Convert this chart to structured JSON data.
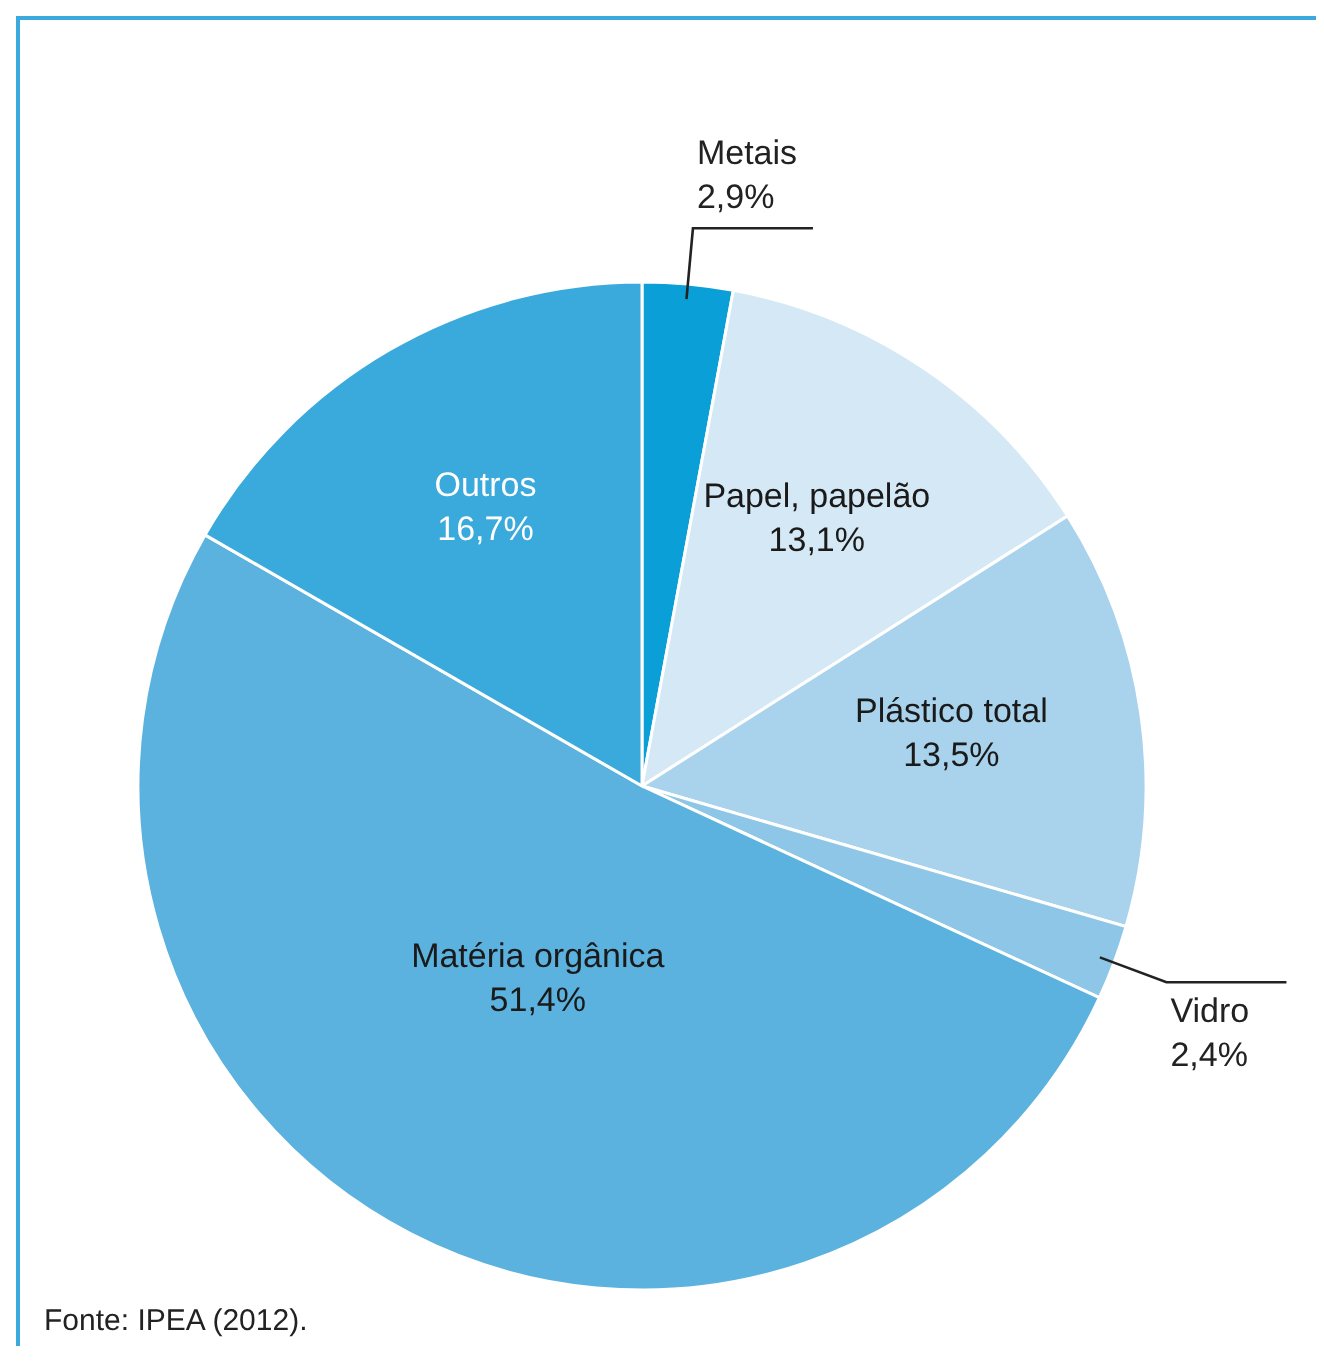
{
  "chart_data": {
    "type": "pie",
    "categories": [
      "Metais",
      "Papel, papelão",
      "Plástico total",
      "Vidro",
      "Matéria orgânica",
      "Outros"
    ],
    "values": [
      2.9,
      13.1,
      13.5,
      2.4,
      51.4,
      16.7
    ],
    "value_labels": [
      "2,9%",
      "13,1%",
      "13,5%",
      "2,4%",
      "51,4%",
      "16,7%"
    ],
    "colors": [
      "#0a9fd6",
      "#d4e8f5",
      "#a9d3ec",
      "#8ec6e8",
      "#5bb2de",
      "#3aa9db"
    ],
    "annotations": [
      "Fonte: IPEA (2012)."
    ]
  }
}
